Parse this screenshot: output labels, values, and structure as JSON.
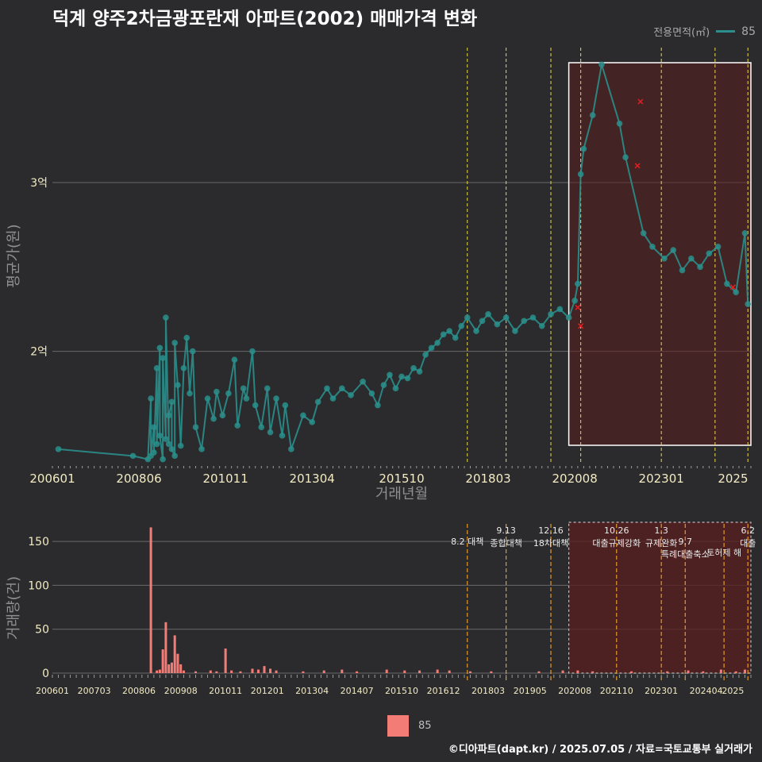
{
  "title": "덕계 양주2차금광포란재 아파트(2002) 매매가격 변화",
  "legend_top": {
    "label": "전용면적(㎡)",
    "series_name": "85",
    "color": "#2a8f8c"
  },
  "legend_bottom": {
    "series_name": "85",
    "color": "#f47c76"
  },
  "caption": "©디아파트(dapt.kr) / 2025.07.05 / 자료=국토교통부 실거래가",
  "colors": {
    "background": "#2b2b2d",
    "price": "#2a8f8c",
    "volume": "#f47c76",
    "policy_line": "#e8d84a",
    "highlight_fill": "#5a1e1e",
    "outlier": "#e02020"
  },
  "chart_data": [
    {
      "type": "line",
      "title": "덕계 양주2차금광포란재 아파트(2002) 매매가격 변화",
      "xlabel": "거래년월",
      "ylabel": "평균가(원)",
      "x_ticks": [
        "200601",
        "200806",
        "201011",
        "201304",
        "201510",
        "201803",
        "202008",
        "202301",
        "2025"
      ],
      "y_ticks": [
        {
          "value": 2.0,
          "label": "2억"
        },
        {
          "value": 3.0,
          "label": "3억"
        }
      ],
      "xlim": [
        "2006-01",
        "2025-07"
      ],
      "ylim": [
        1.33,
        3.8
      ],
      "grid": true,
      "legend": "top-right",
      "policy_dates": [
        "2017-08",
        "2018-09",
        "2019-12",
        "2020-10",
        "2023-01",
        "2024-07",
        "2025-06"
      ],
      "highlight_range": [
        "2020-06",
        "2025-07"
      ],
      "series": [
        {
          "name": "85",
          "points": [
            [
              "2006-03",
              1.42
            ],
            [
              "2008-04",
              1.38
            ],
            [
              "2008-09",
              1.36
            ],
            [
              "2008-10",
              1.72
            ],
            [
              "2008-10",
              1.38
            ],
            [
              "2008-11",
              1.55
            ],
            [
              "2008-11",
              1.4
            ],
            [
              "2008-12",
              1.9
            ],
            [
              "2008-12",
              1.45
            ],
            [
              "2009-01",
              2.02
            ],
            [
              "2009-01",
              1.5
            ],
            [
              "2009-02",
              1.36
            ],
            [
              "2009-02",
              1.96
            ],
            [
              "2009-03",
              1.48
            ],
            [
              "2009-03",
              2.2
            ],
            [
              "2009-04",
              1.45
            ],
            [
              "2009-04",
              1.62
            ],
            [
              "2009-05",
              1.7
            ],
            [
              "2009-05",
              1.42
            ],
            [
              "2009-06",
              1.38
            ],
            [
              "2009-06",
              2.05
            ],
            [
              "2009-07",
              1.8
            ],
            [
              "2009-08",
              1.44
            ],
            [
              "2009-09",
              1.9
            ],
            [
              "2009-10",
              2.08
            ],
            [
              "2009-11",
              1.75
            ],
            [
              "2009-12",
              2.0
            ],
            [
              "2010-01",
              1.55
            ],
            [
              "2010-03",
              1.42
            ],
            [
              "2010-05",
              1.72
            ],
            [
              "2010-07",
              1.6
            ],
            [
              "2010-08",
              1.76
            ],
            [
              "2010-10",
              1.62
            ],
            [
              "2010-12",
              1.75
            ],
            [
              "2011-02",
              1.95
            ],
            [
              "2011-03",
              1.56
            ],
            [
              "2011-05",
              1.78
            ],
            [
              "2011-06",
              1.72
            ],
            [
              "2011-08",
              2.0
            ],
            [
              "2011-09",
              1.68
            ],
            [
              "2011-11",
              1.55
            ],
            [
              "2012-01",
              1.78
            ],
            [
              "2012-02",
              1.52
            ],
            [
              "2012-04",
              1.72
            ],
            [
              "2012-06",
              1.5
            ],
            [
              "2012-07",
              1.68
            ],
            [
              "2012-09",
              1.42
            ],
            [
              "2013-01",
              1.62
            ],
            [
              "2013-04",
              1.58
            ],
            [
              "2013-06",
              1.7
            ],
            [
              "2013-09",
              1.78
            ],
            [
              "2013-11",
              1.72
            ],
            [
              "2014-02",
              1.78
            ],
            [
              "2014-05",
              1.74
            ],
            [
              "2014-09",
              1.82
            ],
            [
              "2014-12",
              1.75
            ],
            [
              "2015-02",
              1.68
            ],
            [
              "2015-04",
              1.8
            ],
            [
              "2015-06",
              1.86
            ],
            [
              "2015-08",
              1.78
            ],
            [
              "2015-10",
              1.85
            ],
            [
              "2015-12",
              1.84
            ],
            [
              "2016-02",
              1.9
            ],
            [
              "2016-04",
              1.88
            ],
            [
              "2016-06",
              1.98
            ],
            [
              "2016-08",
              2.02
            ],
            [
              "2016-10",
              2.05
            ],
            [
              "2016-12",
              2.1
            ],
            [
              "2017-02",
              2.12
            ],
            [
              "2017-04",
              2.08
            ],
            [
              "2017-06",
              2.15
            ],
            [
              "2017-08",
              2.2
            ],
            [
              "2017-11",
              2.12
            ],
            [
              "2018-01",
              2.18
            ],
            [
              "2018-03",
              2.22
            ],
            [
              "2018-06",
              2.16
            ],
            [
              "2018-09",
              2.2
            ],
            [
              "2018-12",
              2.12
            ],
            [
              "2019-03",
              2.18
            ],
            [
              "2019-06",
              2.2
            ],
            [
              "2019-09",
              2.15
            ],
            [
              "2019-12",
              2.22
            ],
            [
              "2020-03",
              2.25
            ],
            [
              "2020-06",
              2.2
            ],
            [
              "2020-08",
              2.3
            ],
            [
              "2020-09",
              2.4
            ],
            [
              "2020-10",
              3.05
            ],
            [
              "2020-11",
              3.2
            ],
            [
              "2021-02",
              3.4
            ],
            [
              "2021-05",
              3.7
            ],
            [
              "2021-11",
              3.35
            ],
            [
              "2022-01",
              3.15
            ],
            [
              "2022-07",
              2.7
            ],
            [
              "2022-10",
              2.62
            ],
            [
              "2023-02",
              2.55
            ],
            [
              "2023-05",
              2.6
            ],
            [
              "2023-08",
              2.48
            ],
            [
              "2023-11",
              2.55
            ],
            [
              "2024-02",
              2.5
            ],
            [
              "2024-05",
              2.58
            ],
            [
              "2024-08",
              2.62
            ],
            [
              "2024-11",
              2.4
            ],
            [
              "2025-02",
              2.35
            ],
            [
              "2025-05",
              2.7
            ],
            [
              "2025-06",
              2.28
            ]
          ]
        }
      ],
      "outliers": [
        [
          "2020-09",
          2.26
        ],
        [
          "2020-10",
          2.15
        ],
        [
          "2022-05",
          3.1
        ],
        [
          "2022-06",
          3.48
        ],
        [
          "2025-01",
          2.38
        ]
      ]
    },
    {
      "type": "bar",
      "title": "",
      "xlabel": "",
      "ylabel": "거래량(건)",
      "x_ticks": [
        "200601",
        "200703",
        "200806",
        "200908",
        "201011",
        "201201",
        "201304",
        "201407",
        "201510",
        "201612",
        "201803",
        "201905",
        "202008",
        "202110",
        "202301",
        "202404",
        "2025"
      ],
      "y_ticks": [
        0,
        50,
        100,
        150
      ],
      "ylim": [
        0,
        170
      ],
      "xlim": [
        "2006-01",
        "2025-07"
      ],
      "policy_labels": [
        {
          "date": "2017-08",
          "label": "8.2 대책",
          "row": 1
        },
        {
          "date": "2018-09",
          "label": "9.13\n종합대책",
          "row": 0
        },
        {
          "date": "2019-12",
          "label": "12.16\n18차대책",
          "row": 0
        },
        {
          "date": "2021-10",
          "label": "10.26\n대출규제강화",
          "row": 0
        },
        {
          "date": "2023-01",
          "label": "1.3\n규제완화",
          "row": 0
        },
        {
          "date": "2023-09",
          "label": "9.7\n특례대출축소",
          "row": 1
        },
        {
          "date": "2025-06",
          "label": "6.2\n대출",
          "row": 0
        },
        {
          "date": "2024-10",
          "label": "토허제 해",
          "row": 2
        }
      ],
      "series": [
        {
          "name": "85",
          "values": [
            [
              "2008-10",
              166
            ],
            [
              "2008-12",
              3
            ],
            [
              "2009-01",
              4
            ],
            [
              "2009-02",
              27
            ],
            [
              "2009-03",
              58
            ],
            [
              "2009-04",
              10
            ],
            [
              "2009-05",
              12
            ],
            [
              "2009-06",
              43
            ],
            [
              "2009-07",
              22
            ],
            [
              "2009-08",
              10
            ],
            [
              "2009-09",
              3
            ],
            [
              "2010-01",
              2
            ],
            [
              "2010-06",
              3
            ],
            [
              "2010-08",
              2
            ],
            [
              "2010-11",
              28
            ],
            [
              "2011-01",
              3
            ],
            [
              "2011-04",
              2
            ],
            [
              "2011-08",
              5
            ],
            [
              "2011-10",
              4
            ],
            [
              "2011-12",
              8
            ],
            [
              "2012-02",
              5
            ],
            [
              "2012-04",
              3
            ],
            [
              "2013-01",
              2
            ],
            [
              "2013-08",
              3
            ],
            [
              "2014-02",
              4
            ],
            [
              "2014-07",
              2
            ],
            [
              "2015-05",
              4
            ],
            [
              "2015-11",
              3
            ],
            [
              "2016-04",
              3
            ],
            [
              "2016-10",
              4
            ],
            [
              "2017-02",
              3
            ],
            [
              "2017-09",
              2
            ],
            [
              "2018-04",
              2
            ],
            [
              "2019-08",
              2
            ],
            [
              "2020-04",
              3
            ],
            [
              "2020-09",
              3
            ],
            [
              "2021-02",
              2
            ],
            [
              "2022-03",
              2
            ],
            [
              "2023-03",
              2
            ],
            [
              "2023-10",
              3
            ],
            [
              "2024-03",
              2
            ],
            [
              "2024-09",
              4
            ],
            [
              "2025-02",
              2
            ],
            [
              "2025-05",
              4
            ]
          ]
        }
      ]
    }
  ]
}
